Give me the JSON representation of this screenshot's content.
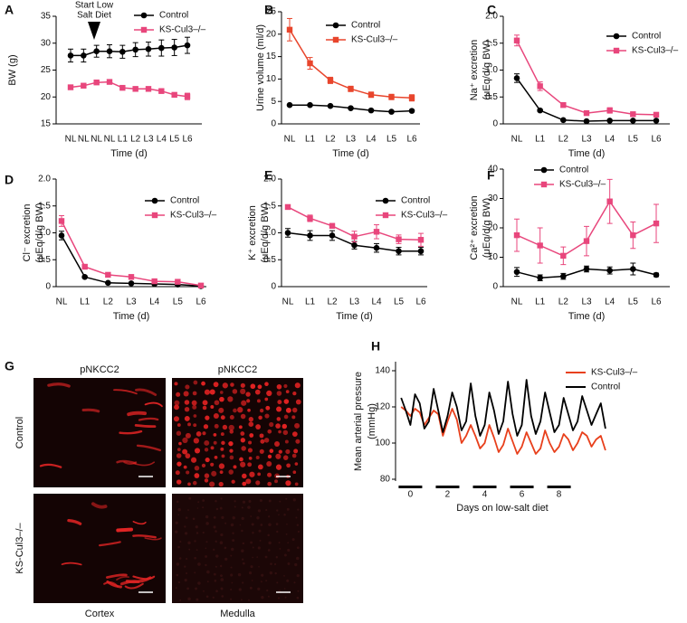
{
  "chart_data": [
    {
      "type": "line",
      "panel": "A",
      "y_label": [
        "BW (g)"
      ],
      "x_label": "Time (d)",
      "annotation": [
        "Start Low",
        "Salt Diet"
      ],
      "categories": [
        "NL",
        "NL",
        "NL",
        "NL",
        "L1",
        "L2",
        "L3",
        "L4",
        "L5",
        "L6"
      ],
      "series": [
        {
          "name": "Control",
          "color": "#000000",
          "marker": "circle",
          "values": [
            27.7,
            27.7,
            28.5,
            28.5,
            28.4,
            28.8,
            28.9,
            29.1,
            29.2,
            29.6
          ],
          "errors": [
            1.2,
            1.2,
            1.1,
            1.2,
            1.2,
            1.3,
            1.3,
            1.5,
            1.5,
            1.5
          ]
        },
        {
          "name": "KS-Cul3–/–",
          "color": "#e8467c",
          "marker": "square",
          "values": [
            21.8,
            22.1,
            22.7,
            22.8,
            21.7,
            21.5,
            21.5,
            21.1,
            20.4,
            20.1
          ],
          "errors": [
            0.4,
            0.4,
            0.3,
            0.3,
            0.3,
            0.3,
            0.3,
            0.3,
            0.4,
            0.6
          ]
        }
      ],
      "ylim": [
        15,
        35
      ],
      "yticks": [
        15,
        20,
        25,
        30,
        35
      ],
      "legend": "top-right"
    },
    {
      "type": "line",
      "panel": "B",
      "y_label": [
        "Urine volume (ml/d)"
      ],
      "x_label": "Time (d)",
      "categories": [
        "NL",
        "L1",
        "L2",
        "L3",
        "L4",
        "L5",
        "L6"
      ],
      "series": [
        {
          "name": "Control",
          "color": "#000000",
          "marker": "circle",
          "values": [
            4.2,
            4.2,
            4.0,
            3.5,
            3.0,
            2.7,
            2.9
          ],
          "errors": [
            0.2,
            0.2,
            0.2,
            0.2,
            0.2,
            0.2,
            0.2
          ]
        },
        {
          "name": "KS-Cul3–/–",
          "color": "#e8452c",
          "marker": "square",
          "values": [
            21,
            13.5,
            9.7,
            7.8,
            6.5,
            6.0,
            5.8
          ],
          "errors": [
            2.5,
            1.3,
            0.7,
            0.6,
            0.6,
            0.6,
            0.7
          ]
        }
      ],
      "ylim": [
        0,
        25
      ],
      "yticks": [
        0,
        5,
        10,
        15,
        20,
        25
      ],
      "legend": "top-right"
    },
    {
      "type": "line",
      "panel": "C",
      "y_label": [
        "Na⁺ excretion",
        "(μEq/d/g BW)"
      ],
      "x_label": "Time (d)",
      "categories": [
        "NL",
        "L1",
        "L2",
        "L3",
        "L4",
        "L5",
        "L6"
      ],
      "series": [
        {
          "name": "Control",
          "color": "#000000",
          "marker": "circle",
          "values": [
            0.85,
            0.25,
            0.07,
            0.05,
            0.06,
            0.06,
            0.06
          ],
          "errors": [
            0.08,
            0.02,
            0.01,
            0.01,
            0.01,
            0.01,
            0.01
          ]
        },
        {
          "name": "KS-Cul3–/–",
          "color": "#e8467c",
          "marker": "square",
          "values": [
            1.55,
            0.7,
            0.35,
            0.2,
            0.25,
            0.18,
            0.17
          ],
          "errors": [
            0.1,
            0.08,
            0.04,
            0.03,
            0.05,
            0.03,
            0.03
          ]
        }
      ],
      "ylim": [
        0,
        2
      ],
      "yticks": [
        0,
        0.5,
        {
          "value": 1,
          "label": "1.0"
        },
        1.5,
        {
          "value": 2,
          "label": "2.0"
        }
      ],
      "legend": "top-right"
    },
    {
      "type": "line",
      "panel": "D",
      "y_label": [
        "Cl⁻ excretion",
        "(μEq/d/g BW)"
      ],
      "x_label": "Time (d)",
      "categories": [
        "NL",
        "L1",
        "L2",
        "L3",
        "L4",
        "L5",
        "L6"
      ],
      "series": [
        {
          "name": "Control",
          "color": "#000000",
          "marker": "circle",
          "values": [
            0.95,
            0.18,
            0.07,
            0.06,
            0.05,
            0.04,
            0.01
          ],
          "errors": [
            0.08,
            0.02,
            0.01,
            0.01,
            0.01,
            0.01,
            0.01
          ]
        },
        {
          "name": "KS-Cul3–/–",
          "color": "#e8467c",
          "marker": "square",
          "values": [
            1.22,
            0.37,
            0.22,
            0.18,
            0.1,
            0.09,
            0.02
          ],
          "errors": [
            0.1,
            0.04,
            0.03,
            0.03,
            0.02,
            0.02,
            0.01
          ]
        }
      ],
      "ylim": [
        0,
        2
      ],
      "yticks": [
        0,
        0.5,
        {
          "value": 1,
          "label": "1.0"
        },
        1.5,
        {
          "value": 2,
          "label": "2.0"
        }
      ],
      "legend": "top-right"
    },
    {
      "type": "line",
      "panel": "E",
      "y_label": [
        "K⁺ excretion",
        "(μEq/d/g BW)"
      ],
      "x_label": "Time (d)",
      "categories": [
        "NL",
        "L1",
        "L2",
        "L3",
        "L4",
        "L5",
        "L6"
      ],
      "series": [
        {
          "name": "Control",
          "color": "#000000",
          "marker": "circle",
          "values": [
            1.0,
            0.95,
            0.95,
            0.77,
            0.72,
            0.66,
            0.66
          ],
          "errors": [
            0.08,
            0.09,
            0.09,
            0.07,
            0.08,
            0.07,
            0.07
          ]
        },
        {
          "name": "KS-Cul3–/–",
          "color": "#e8467c",
          "marker": "square",
          "values": [
            1.48,
            1.27,
            1.13,
            0.93,
            1.02,
            0.88,
            0.87
          ],
          "errors": [
            0.03,
            0.06,
            0.03,
            0.1,
            0.13,
            0.08,
            0.12
          ]
        }
      ],
      "ylim": [
        0,
        2
      ],
      "yticks": [
        0,
        0.5,
        {
          "value": 1,
          "label": "1.0"
        },
        1.5,
        {
          "value": 2,
          "label": "2.0"
        }
      ],
      "legend": "top-right"
    },
    {
      "type": "line",
      "panel": "F",
      "y_label": [
        "Ca²⁺ excretion",
        "(μEq/d/g BW)"
      ],
      "x_label": "Time (d)",
      "categories": [
        "NL",
        "L1",
        "L2",
        "L3",
        "L4",
        "L5",
        "L6"
      ],
      "series": [
        {
          "name": "Control",
          "color": "#000000",
          "marker": "circle",
          "values": [
            5,
            3,
            3.5,
            6,
            5.5,
            6,
            4
          ],
          "errors": [
            1.5,
            1,
            1,
            1,
            1.2,
            2,
            0.6
          ]
        },
        {
          "name": "KS-Cul3–/–",
          "color": "#e8467c",
          "marker": "square",
          "values": [
            17.5,
            14,
            10.5,
            15.5,
            29,
            17.5,
            21.5
          ],
          "errors": [
            5.5,
            6,
            3,
            5,
            7.5,
            4.5,
            6.5
          ]
        }
      ],
      "ylim": [
        0,
        40
      ],
      "yticks": [
        0,
        10,
        20,
        30,
        40
      ],
      "legend": "top-left"
    },
    {
      "type": "line",
      "panel": "H",
      "y_label": [
        "Mean arterial pressure",
        "(mmHg)"
      ],
      "x_label": "Days on low-salt diet",
      "x": [
        -0.5,
        -0.25,
        0,
        0.25,
        0.5,
        0.75,
        1,
        1.25,
        1.5,
        1.75,
        2,
        2.25,
        2.5,
        2.75,
        3,
        3.25,
        3.5,
        3.75,
        4,
        4.25,
        4.5,
        4.75,
        5,
        5.25,
        5.5,
        5.75,
        6,
        6.25,
        6.5,
        6.75,
        7,
        7.25,
        7.5,
        7.75,
        8,
        8.25,
        8.5,
        8.75,
        9,
        9.25,
        9.5,
        9.75,
        10,
        10.25,
        10.5
      ],
      "series": [
        {
          "name": "KS-Cul3–/–",
          "color": "#e8401c",
          "values": [
            120,
            118,
            115,
            119,
            117,
            110,
            114,
            118,
            116,
            104,
            112,
            119,
            113,
            100,
            104,
            110,
            104,
            97,
            100,
            110,
            103,
            95,
            99,
            108,
            101,
            94,
            98,
            106,
            100,
            94,
            97,
            107,
            100,
            95,
            98,
            105,
            102,
            96,
            100,
            106,
            104,
            98,
            102,
            104,
            96
          ]
        },
        {
          "name": "Control",
          "color": "#000000",
          "values": [
            125,
            118,
            110,
            127,
            122,
            108,
            112,
            130,
            118,
            106,
            115,
            128,
            120,
            107,
            112,
            133,
            115,
            104,
            110,
            128,
            118,
            105,
            112,
            134,
            116,
            104,
            110,
            135,
            115,
            105,
            112,
            128,
            117,
            106,
            110,
            125,
            116,
            107,
            112,
            126,
            118,
            110,
            116,
            122,
            108
          ]
        }
      ],
      "xlim": [
        -0.8,
        10.7
      ],
      "xticks": [
        0,
        2,
        4,
        6,
        8
      ],
      "ylim": [
        79,
        145
      ],
      "yticks": [
        80,
        100,
        120,
        140
      ],
      "legend": "top-right"
    }
  ],
  "image_panel": {
    "panel": "G",
    "column_titles": [
      "pNKCC2",
      "pNKCC2"
    ],
    "row_labels": [
      "Control",
      "KS-Cul3–/–"
    ],
    "column_labels": [
      "Cortex",
      "Medulla"
    ]
  }
}
